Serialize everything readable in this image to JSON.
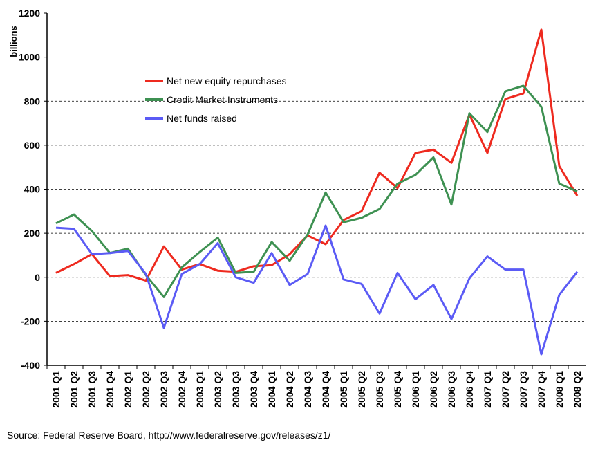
{
  "chart_data": {
    "type": "line",
    "y_label": "billions",
    "source": "Source: Federal Reserve Board, http://www.federalreserve.gov/releases/z1/",
    "categories": [
      "2001 Q1",
      "2001 Q2",
      "2001 Q3",
      "2001 Q4",
      "2002 Q1",
      "2002 Q2",
      "2002 Q3",
      "2002 Q4",
      "2003 Q1",
      "2003 Q2",
      "2003 Q3",
      "2003 Q4",
      "2004 Q1",
      "2004 Q2",
      "2004 Q3",
      "2004 Q4",
      "2005 Q1",
      "2005 Q2",
      "2005 Q3",
      "2005 Q4",
      "2006 Q1",
      "2006 Q2",
      "2006 Q3",
      "2006 Q4",
      "2007 Q1",
      "2007 Q2",
      "2007 Q3",
      "2007 Q4",
      "2008 Q1",
      "2008 Q2"
    ],
    "series": [
      {
        "name": "Net new equity repurchases",
        "color": "#ee2a1f",
        "values": [
          20,
          60,
          105,
          5,
          10,
          -15,
          140,
          35,
          60,
          30,
          25,
          50,
          55,
          105,
          190,
          150,
          260,
          300,
          475,
          405,
          565,
          580,
          520,
          740,
          565,
          810,
          835,
          1125,
          505,
          370
        ]
      },
      {
        "name": "Credit Market Instruments",
        "color": "#3e9152",
        "values": [
          245,
          285,
          210,
          110,
          130,
          10,
          -90,
          45,
          115,
          180,
          20,
          25,
          160,
          75,
          195,
          385,
          250,
          270,
          310,
          425,
          465,
          545,
          330,
          745,
          660,
          845,
          870,
          775,
          425,
          390
        ]
      },
      {
        "name": "Net funds raised",
        "color": "#5b5bf5",
        "values": [
          225,
          220,
          105,
          110,
          120,
          15,
          -230,
          15,
          60,
          155,
          0,
          -25,
          110,
          -35,
          15,
          235,
          -10,
          -30,
          -165,
          20,
          -100,
          -35,
          -190,
          -5,
          95,
          35,
          35,
          -350,
          -80,
          25
        ]
      }
    ],
    "ylim": [
      -400,
      1200
    ],
    "yticks": [
      -400,
      -200,
      0,
      200,
      400,
      600,
      800,
      1000,
      1200
    ],
    "grid": true
  }
}
